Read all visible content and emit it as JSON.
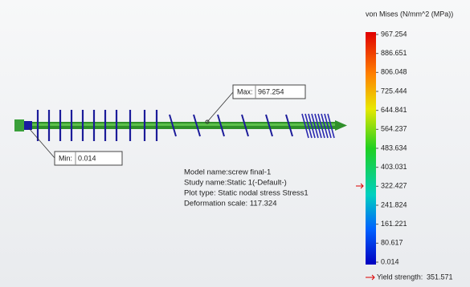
{
  "legend": {
    "title": "von Mises (N/mm^2 (MPa))",
    "ticks": [
      "967.254",
      "886.651",
      "806.048",
      "725.444",
      "644.841",
      "564.237",
      "483.634",
      "403.031",
      "322.427",
      "241.824",
      "161.221",
      "80.617",
      "0.014"
    ],
    "yield_label": "Yield strength:",
    "yield_value": "351.571"
  },
  "probes": {
    "max": {
      "label": "Max:",
      "value": "967.254"
    },
    "min": {
      "label": "Min:",
      "value": "0.014"
    }
  },
  "info": [
    "Model name:screw final-1",
    "Study name:Static 1(-Default-)",
    "Plot type: Static nodal stress Stress1",
    "Deformation scale: 117.324"
  ]
}
